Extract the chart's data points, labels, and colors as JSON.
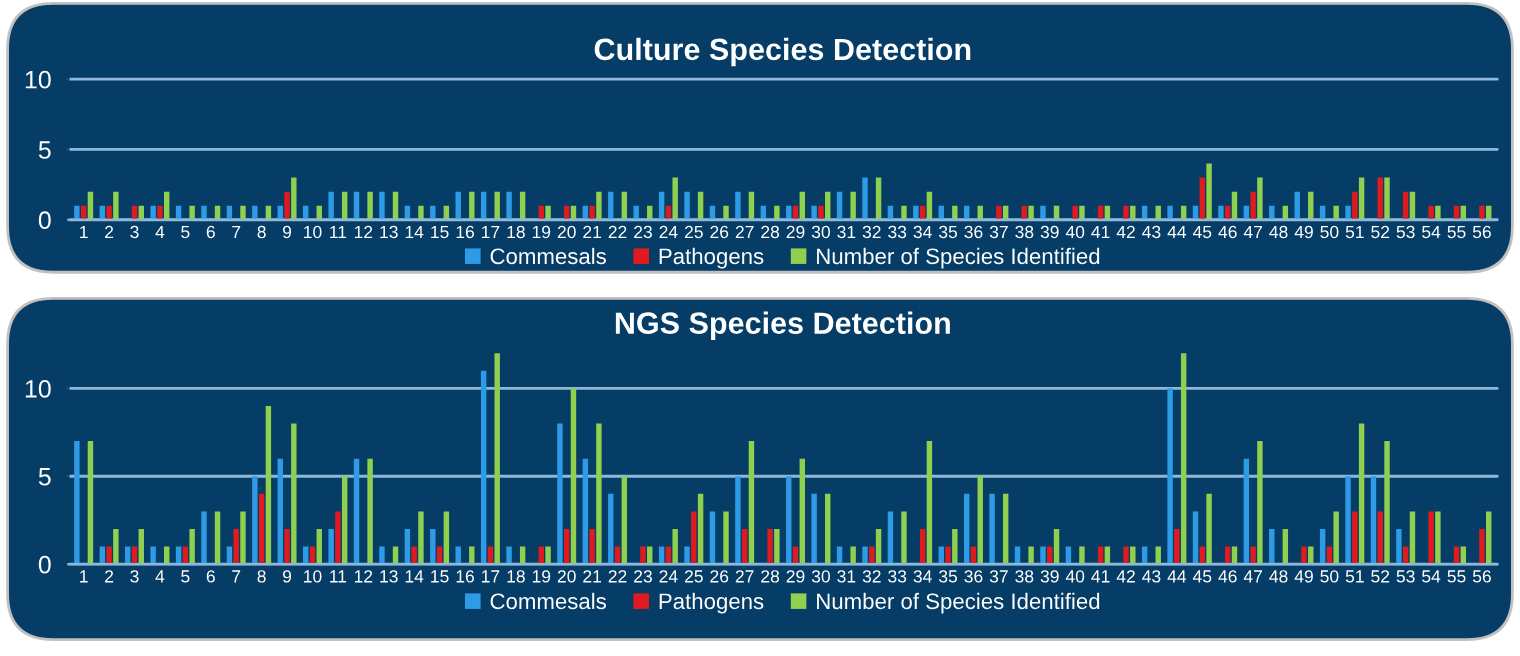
{
  "chart_data": [
    {
      "type": "bar",
      "title": "Culture Species Detection",
      "categories": [
        "1",
        "2",
        "3",
        "4",
        "5",
        "6",
        "7",
        "8",
        "9",
        "10",
        "11",
        "12",
        "13",
        "14",
        "15",
        "16",
        "17",
        "18",
        "19",
        "20",
        "21",
        "22",
        "23",
        "24",
        "25",
        "26",
        "27",
        "28",
        "29",
        "30",
        "31",
        "32",
        "33",
        "34",
        "35",
        "36",
        "37",
        "38",
        "39",
        "40",
        "41",
        "42",
        "43",
        "44",
        "45",
        "46",
        "47",
        "48",
        "49",
        "50",
        "51",
        "52",
        "53",
        "54",
        "55",
        "56"
      ],
      "series": [
        {
          "name": "Commesals",
          "color": "#2e9be6",
          "values": [
            1,
            1,
            0,
            1,
            1,
            1,
            1,
            1,
            1,
            1,
            2,
            2,
            2,
            1,
            1,
            2,
            2,
            2,
            0,
            0,
            1,
            2,
            1,
            2,
            2,
            1,
            2,
            1,
            1,
            1,
            2,
            3,
            1,
            1,
            1,
            1,
            0,
            0,
            1,
            0,
            0,
            0,
            1,
            1,
            1,
            1,
            1,
            1,
            2,
            1,
            1,
            0,
            0,
            0,
            0,
            0
          ]
        },
        {
          "name": "Pathogens",
          "color": "#e01b1f",
          "values": [
            1,
            1,
            1,
            1,
            0,
            0,
            0,
            0,
            2,
            0,
            0,
            0,
            0,
            0,
            0,
            0,
            0,
            0,
            1,
            1,
            1,
            0,
            0,
            1,
            0,
            0,
            0,
            0,
            1,
            1,
            0,
            0,
            0,
            1,
            0,
            0,
            1,
            1,
            0,
            1,
            1,
            1,
            0,
            0,
            3,
            1,
            2,
            0,
            0,
            0,
            2,
            3,
            2,
            1,
            1,
            1
          ]
        },
        {
          "name": "Number of Species Identified",
          "color": "#8fd14f",
          "values": [
            2,
            2,
            1,
            2,
            1,
            1,
            1,
            1,
            3,
            1,
            2,
            2,
            2,
            1,
            1,
            2,
            2,
            2,
            1,
            1,
            2,
            2,
            1,
            3,
            2,
            1,
            2,
            1,
            2,
            2,
            2,
            3,
            1,
            2,
            1,
            1,
            1,
            1,
            1,
            1,
            1,
            1,
            1,
            1,
            4,
            2,
            3,
            1,
            2,
            1,
            3,
            3,
            2,
            1,
            1,
            1
          ]
        }
      ],
      "ylim": [
        0,
        10.5
      ],
      "yticks": [
        0,
        5,
        10
      ],
      "grid": "y",
      "legend": "bottom"
    },
    {
      "type": "bar",
      "title": "NGS Species Detection",
      "categories": [
        "1",
        "2",
        "3",
        "4",
        "5",
        "6",
        "7",
        "8",
        "9",
        "10",
        "11",
        "12",
        "13",
        "14",
        "15",
        "16",
        "17",
        "18",
        "19",
        "20",
        "21",
        "22",
        "23",
        "24",
        "25",
        "26",
        "27",
        "28",
        "29",
        "30",
        "31",
        "32",
        "33",
        "34",
        "35",
        "36",
        "37",
        "38",
        "39",
        "40",
        "41",
        "42",
        "43",
        "44",
        "45",
        "46",
        "47",
        "48",
        "49",
        "50",
        "51",
        "52",
        "53",
        "54",
        "55",
        "56"
      ],
      "series": [
        {
          "name": "Commesals",
          "color": "#2e9be6",
          "values": [
            7,
            1,
            1,
            1,
            1,
            3,
            1,
            5,
            6,
            1,
            2,
            6,
            1,
            2,
            2,
            1,
            11,
            1,
            0,
            8,
            6,
            4,
            0,
            1,
            1,
            3,
            5,
            0,
            5,
            4,
            1,
            1,
            3,
            0,
            1,
            4,
            4,
            1,
            1,
            1,
            0,
            0,
            1,
            10,
            3,
            0,
            6,
            2,
            0,
            2,
            5,
            5,
            2,
            0,
            0,
            0
          ]
        },
        {
          "name": "Pathogens",
          "color": "#e01b1f",
          "values": [
            0,
            1,
            1,
            0,
            1,
            0,
            2,
            4,
            2,
            1,
            3,
            0,
            0,
            1,
            1,
            0,
            1,
            0,
            1,
            2,
            2,
            1,
            1,
            1,
            3,
            0,
            2,
            2,
            1,
            0,
            0,
            1,
            0,
            2,
            1,
            1,
            0,
            0,
            1,
            0,
            1,
            1,
            0,
            2,
            1,
            1,
            1,
            0,
            1,
            1,
            3,
            3,
            1,
            3,
            1,
            2
          ]
        },
        {
          "name": "Number of Species Identified",
          "color": "#8fd14f",
          "values": [
            7,
            2,
            2,
            1,
            2,
            3,
            3,
            9,
            8,
            2,
            5,
            6,
            1,
            3,
            3,
            1,
            12,
            1,
            1,
            10,
            8,
            5,
            1,
            2,
            4,
            3,
            7,
            2,
            6,
            4,
            1,
            2,
            3,
            7,
            2,
            5,
            4,
            1,
            2,
            1,
            1,
            1,
            1,
            12,
            4,
            1,
            7,
            2,
            1,
            3,
            8,
            7,
            3,
            3,
            1,
            3
          ]
        }
      ],
      "ylim": [
        0,
        12.5
      ],
      "yticks": [
        0,
        5,
        10
      ],
      "grid": "y",
      "legend": "bottom"
    }
  ]
}
